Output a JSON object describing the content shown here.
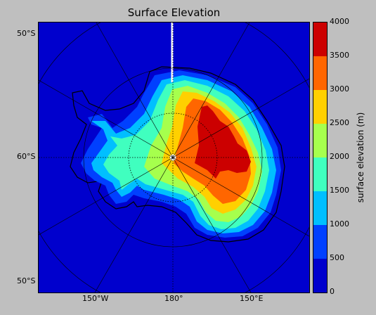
{
  "title": "Surface Elevation",
  "lat_labels": [
    "50°S",
    "60°S",
    "50°S"
  ],
  "lon_labels": [
    "150°W",
    "180°",
    "150°E"
  ],
  "colorbar": {
    "label": "surface elevation (m)",
    "ticks": [
      "4000",
      "3500",
      "3000",
      "2500",
      "2000",
      "1500",
      "1000",
      "500",
      "0"
    ],
    "colors": [
      "#0000cd",
      "#0040ff",
      "#00bfff",
      "#40ffbf",
      "#a6ff4d",
      "#ffd000",
      "#ff6600",
      "#cc0000"
    ]
  },
  "map": {
    "ocean_color": "#0000cd",
    "projection": "south-polar-stereographic",
    "graticule_lines": [
      "dotted 60°S",
      "dotted 90°E-90°W",
      "dotted 0°-180°"
    ]
  },
  "chart_data": {
    "type": "heatmap",
    "title": "Surface Elevation",
    "variable": "surface elevation (m)",
    "levels": [
      0,
      500,
      1000,
      1500,
      2000,
      2500,
      3000,
      3500,
      4000
    ],
    "colors": [
      "#0000cd",
      "#0040ff",
      "#00bfff",
      "#40ffbf",
      "#a6ff4d",
      "#ffd000",
      "#ff6600",
      "#cc0000"
    ],
    "lat_labels": [
      "50°S",
      "60°S",
      "50°S"
    ],
    "lon_labels": [
      "150°W",
      "180°",
      "150°E"
    ]
  }
}
